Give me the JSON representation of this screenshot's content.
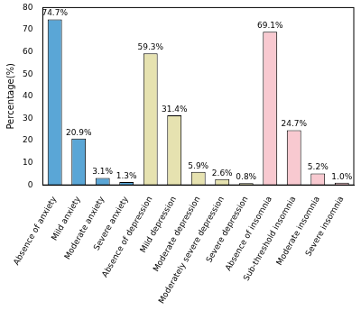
{
  "chart_data": {
    "type": "bar",
    "ylabel": "Percentage(%)",
    "categories": [
      "Absence of anxiety",
      "Mild anxiety",
      "Moderate anxiety",
      "Severe anxiety",
      "Absence of depression",
      "Mild depression",
      "Moderate depression",
      "Moderately severe depression",
      "Severe depression",
      "Absence of insomnia",
      "Sub-threshold insomnia",
      "Moderate insomnia",
      "Severe insomnia"
    ],
    "values": [
      74.7,
      20.9,
      3.1,
      1.3,
      59.3,
      31.4,
      5.9,
      2.6,
      0.8,
      69.1,
      24.7,
      5.2,
      1.0
    ],
    "value_labels": [
      "74.7%",
      "20.9%",
      "3.1%",
      "1.3%",
      "59.3%",
      "31.4%",
      "5.9%",
      "2.6%",
      "0.8%",
      "69.1%",
      "24.7%",
      "5.2%",
      "1.0%"
    ],
    "colors": [
      "#5aa6d6",
      "#5aa6d6",
      "#5aa6d6",
      "#5aa6d6",
      "#e6e2b0",
      "#e6e2b0",
      "#e6e2b0",
      "#e6e2b0",
      "#e6e2b0",
      "#f8c9d0",
      "#f8c9d0",
      "#f8c9d0",
      "#f8c9d0"
    ],
    "ylim": [
      0,
      80
    ],
    "yticks": [
      0,
      10,
      20,
      30,
      40,
      50,
      60,
      70,
      80
    ],
    "grid": false,
    "data_labels": true
  }
}
